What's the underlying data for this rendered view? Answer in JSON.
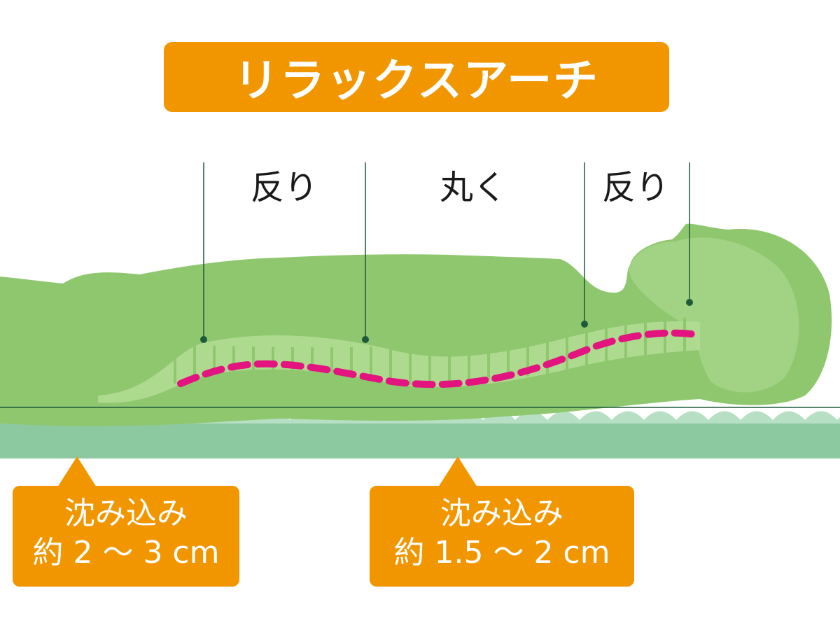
{
  "title": "リラックスアーチ",
  "labels": {
    "left_curve": "反り",
    "middle_curve": "丸く",
    "right_curve": "反り"
  },
  "callouts": [
    {
      "line1": "沈み込み",
      "line2": "約 2 〜 3 cm"
    },
    {
      "line1": "沈み込み",
      "line2": "約 1.5 〜 2 cm"
    }
  ],
  "colors": {
    "orange": "#f29600",
    "body_green": "#8fc76e",
    "mattress_green": "#8dc9a0",
    "spine_magenta": "#e3147f",
    "guide_line": "#1e5a3a"
  }
}
